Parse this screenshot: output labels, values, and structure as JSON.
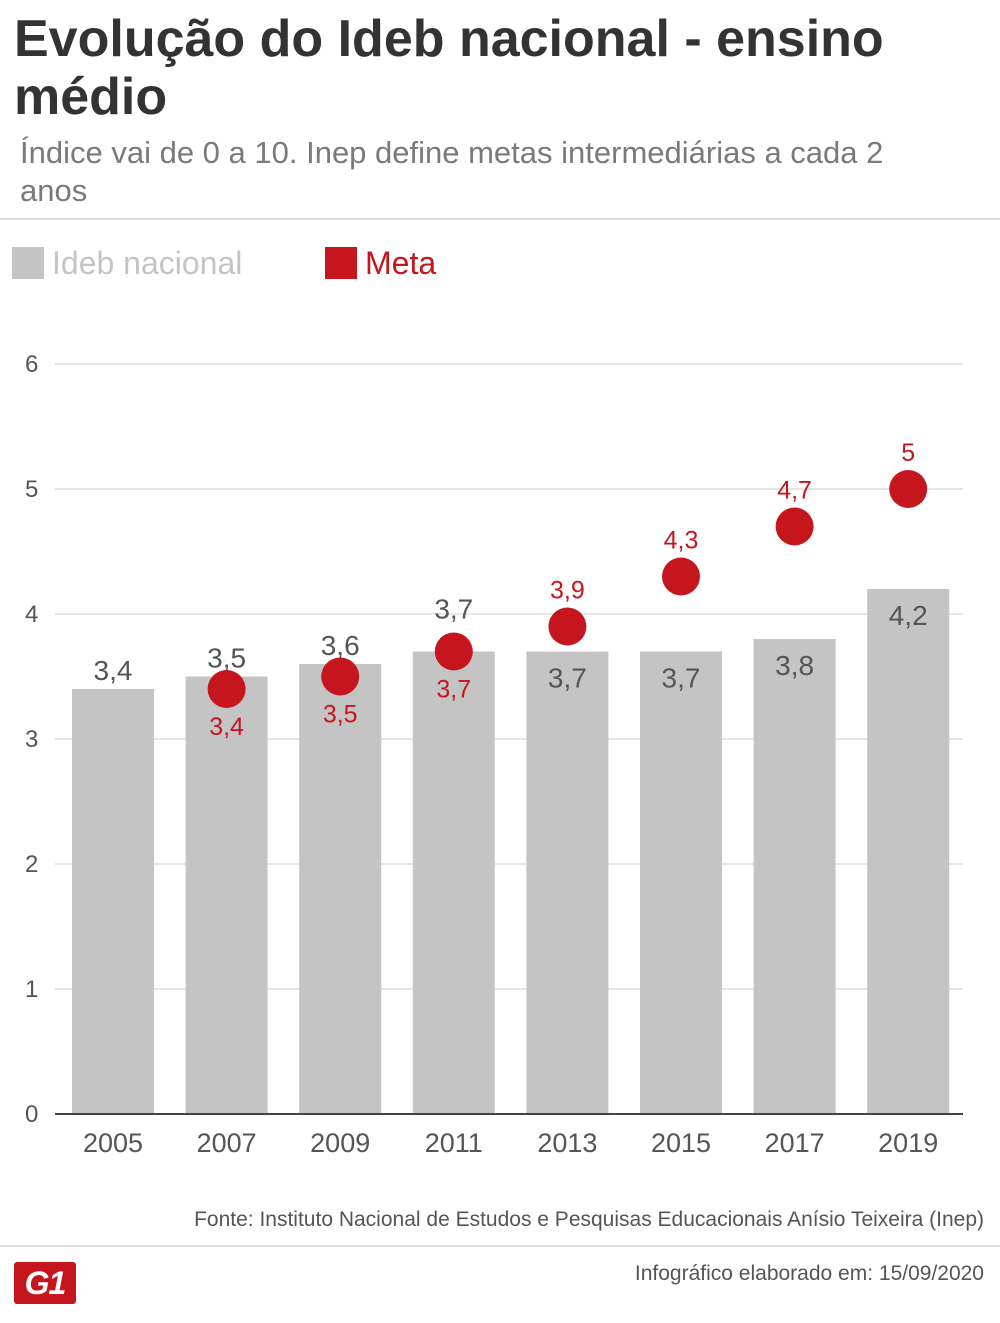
{
  "header": {
    "title": "Evolução do Ideb nacional - ensino médio",
    "subtitle": "Índice vai de 0 a 10. Inep define metas intermediárias a cada 2 anos"
  },
  "legend": {
    "ideb_label": "Ideb nacional",
    "meta_label": "Meta"
  },
  "colors": {
    "bar": "#c4c4c4",
    "meta": "#c4161c",
    "grid": "#dddddd",
    "axis_text": "#555555",
    "bar_label": "#555555"
  },
  "chart_data": {
    "type": "bar",
    "categories": [
      "2005",
      "2007",
      "2009",
      "2011",
      "2013",
      "2015",
      "2017",
      "2019"
    ],
    "series": [
      {
        "name": "Ideb nacional",
        "kind": "bar",
        "values": [
          3.4,
          3.5,
          3.6,
          3.7,
          3.7,
          3.7,
          3.8,
          4.2
        ],
        "labels": [
          "3,4",
          "3,5",
          "3,6",
          "3,7",
          "3,7",
          "3,7",
          "3,8",
          "4,2"
        ]
      },
      {
        "name": "Meta",
        "kind": "dot",
        "values": [
          null,
          3.4,
          3.5,
          3.7,
          3.9,
          4.3,
          4.7,
          5.0
        ],
        "labels": [
          null,
          "3,4",
          "3,5",
          "3,7",
          "3,9",
          "4,3",
          "4,7",
          "5"
        ]
      }
    ],
    "y_ticks": [
      "0",
      "1",
      "2",
      "3",
      "4",
      "5",
      "6"
    ],
    "ylim": [
      0,
      6
    ],
    "grid": true,
    "legend_position": "top-left"
  },
  "footer": {
    "source": "Fonte: Instituto Nacional de Estudos e Pesquisas Educacionais Anísio Teixeira (Inep)",
    "date": "Infográfico elaborado em: 15/09/2020",
    "logo": "G1"
  }
}
